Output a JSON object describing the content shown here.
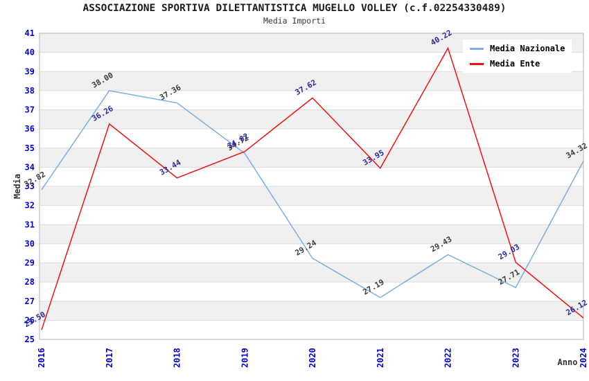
{
  "title": "ASSOCIAZIONE SPORTIVA DILETTANTISTICA MUGELLO VOLLEY (c.f.02254330489)",
  "subtitle": "Media Importi",
  "legend": [
    {
      "label": "Media Nazionale",
      "color": "#79afe1"
    },
    {
      "label": "Media Ente",
      "color": "#ee1111"
    }
  ],
  "chart_data": {
    "type": "line",
    "title": "ASSOCIAZIONE SPORTIVA DILETTANTISTICA MUGELLO VOLLEY (c.f.02254330489)",
    "subtitle": "Media Importi",
    "xlabel": "Anno",
    "ylabel": "Media",
    "ylim": [
      25,
      41
    ],
    "y_tick_step": 1,
    "x": [
      "2016",
      "2017",
      "2018",
      "2019",
      "2020",
      "2021",
      "2022",
      "2023",
      "2024"
    ],
    "series": [
      {
        "name": "Media Nazionale",
        "color": "#79afe1",
        "label_color": "#3c3c3c",
        "values": [
          32.82,
          38.0,
          37.36,
          34.72,
          29.24,
          27.19,
          29.43,
          27.71,
          34.32
        ]
      },
      {
        "name": "Media Ente",
        "color": "#ee1111",
        "label_color": "#2b2ba0",
        "values": [
          25.5,
          36.26,
          33.44,
          34.82,
          37.62,
          33.95,
          40.22,
          29.03,
          26.12
        ]
      }
    ],
    "grid": "alternating horizontal bands",
    "legend_position": "top-right",
    "colors": {
      "tick_label": "#0202cc",
      "band_fill": "#f0f0f0",
      "gridline": "#dcdcdc",
      "frame": "#b6b6b6",
      "axis_title": "#333333"
    }
  }
}
